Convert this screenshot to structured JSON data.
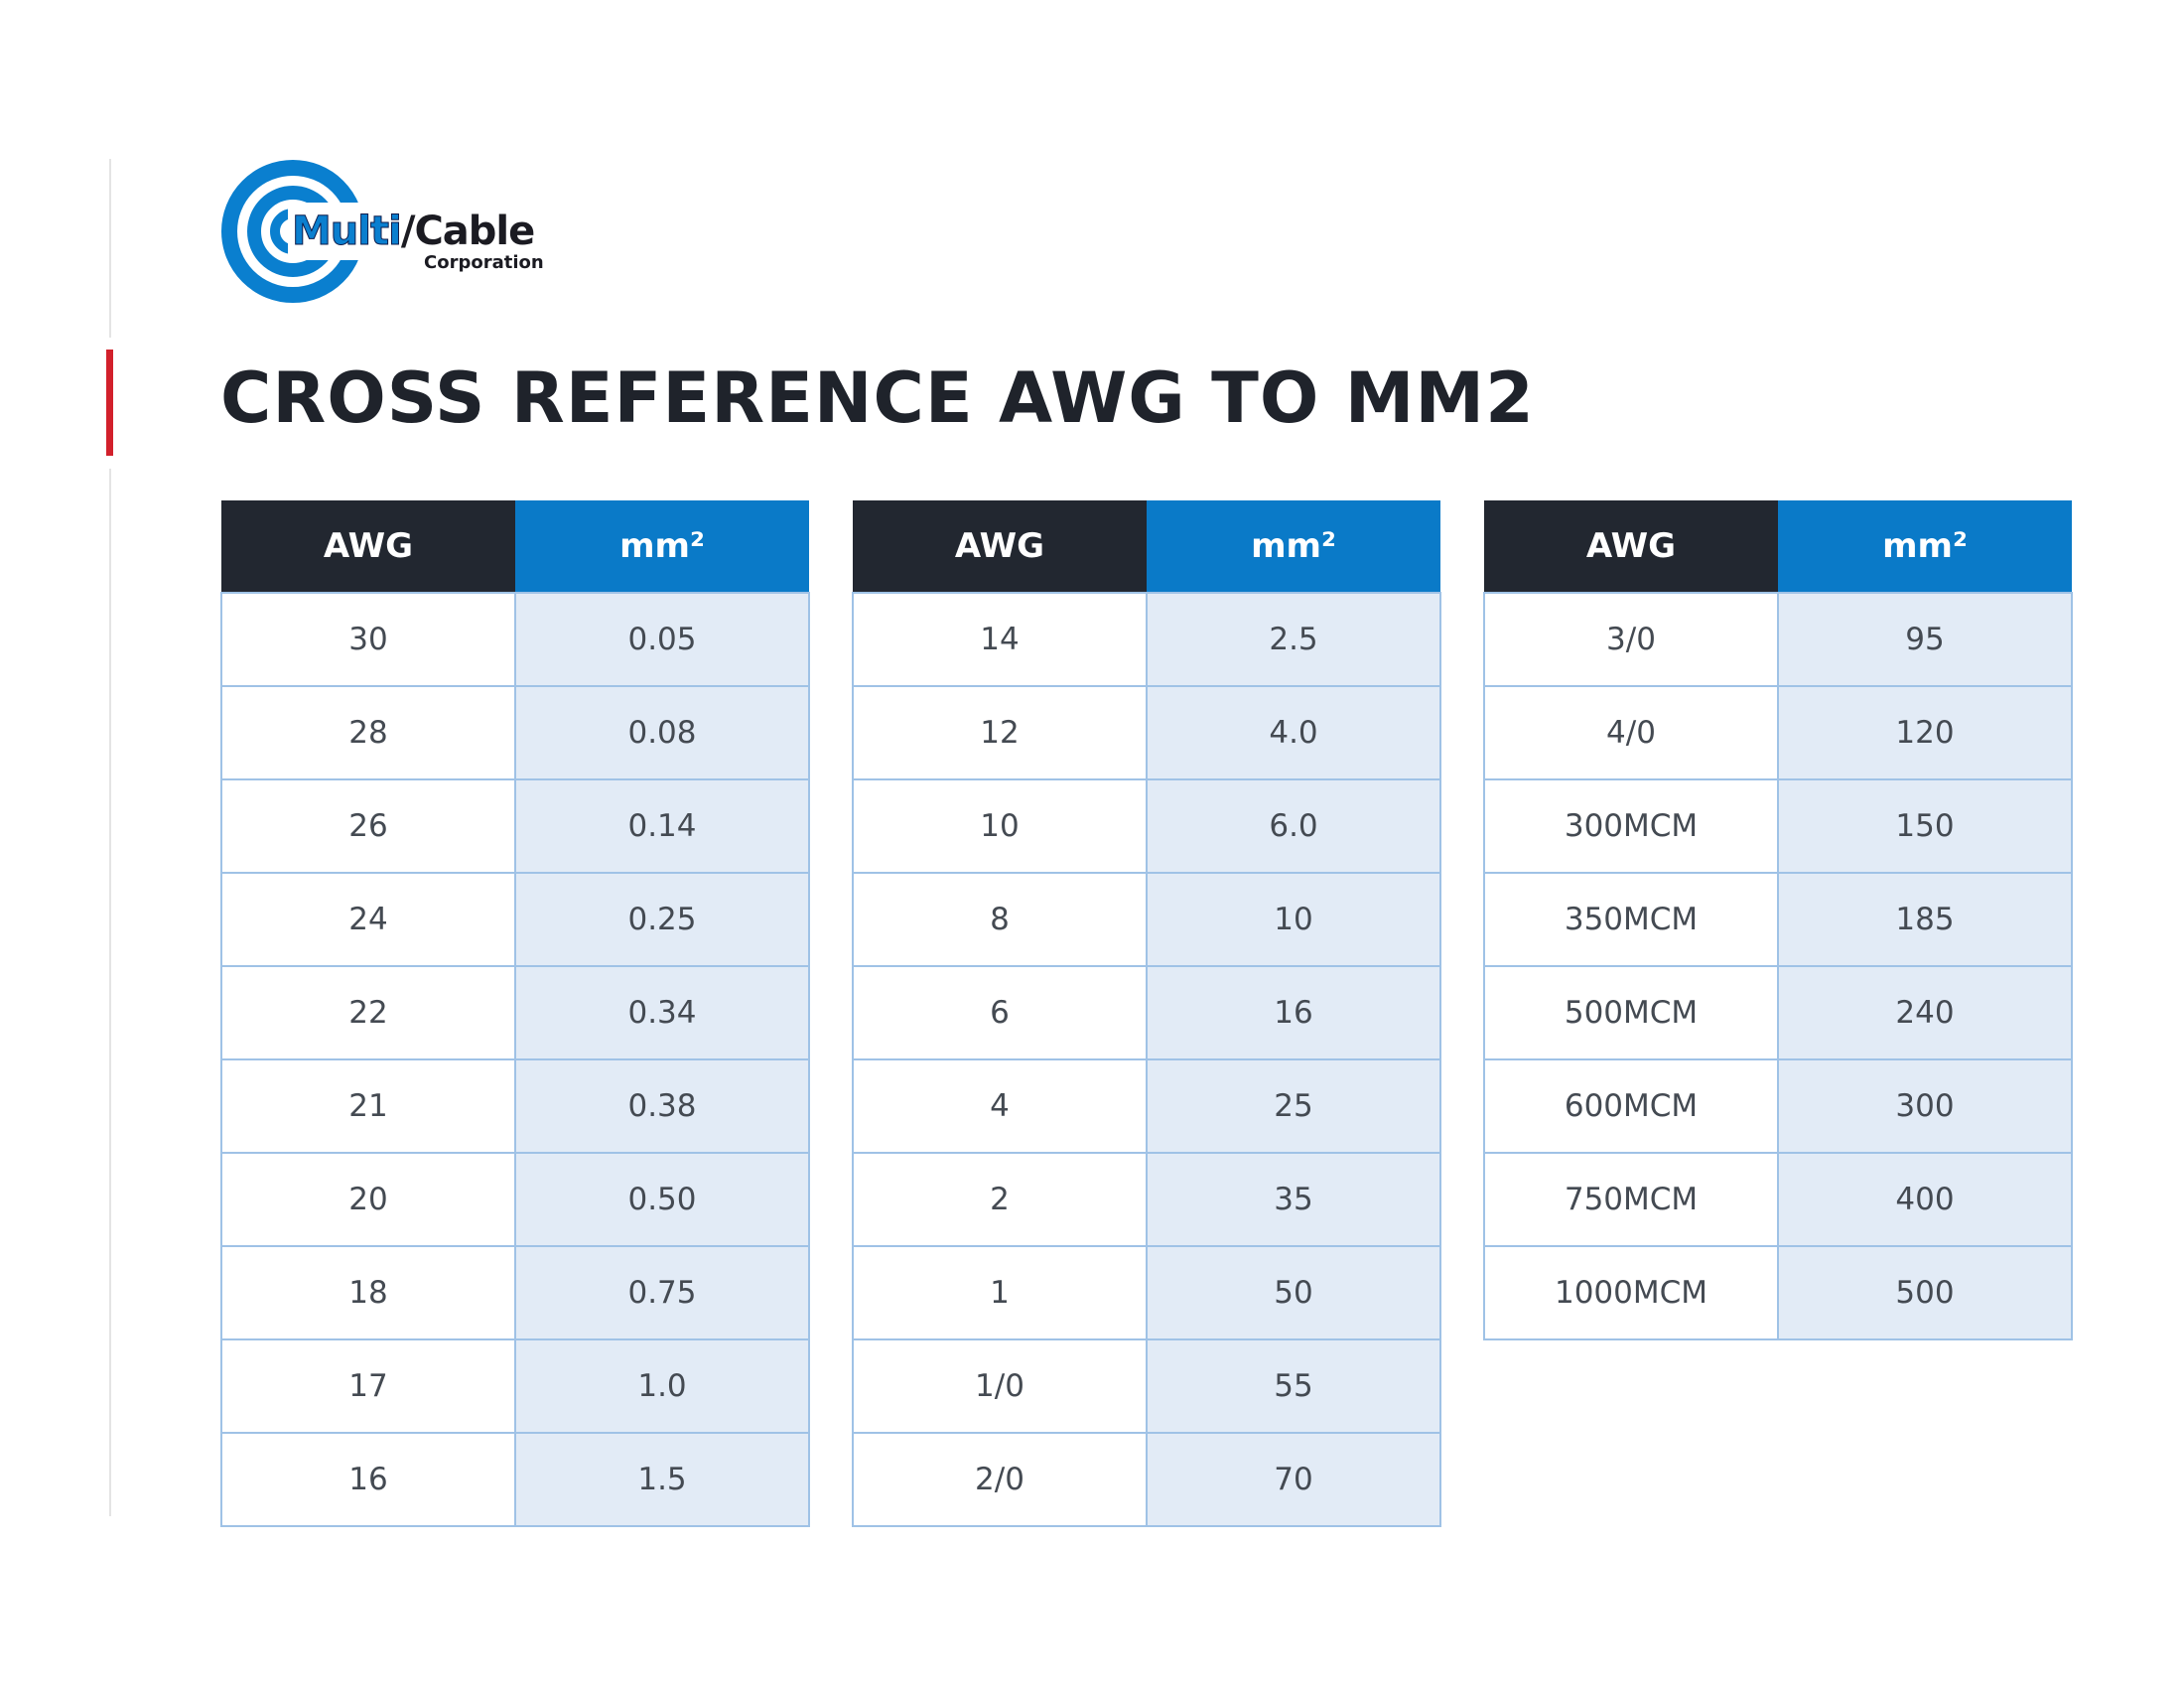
{
  "logo": {
    "word1": "Multi",
    "slash": "/",
    "word2": "Cable",
    "sub": "Corporation"
  },
  "title": "CROSS REFERENCE AWG TO MM2",
  "headers": {
    "awg": "AWG",
    "mm": "mm²"
  },
  "tables": [
    {
      "rows": [
        [
          "30",
          "0.05"
        ],
        [
          "28",
          "0.08"
        ],
        [
          "26",
          "0.14"
        ],
        [
          "24",
          "0.25"
        ],
        [
          "22",
          "0.34"
        ],
        [
          "21",
          "0.38"
        ],
        [
          "20",
          "0.50"
        ],
        [
          "18",
          "0.75"
        ],
        [
          "17",
          "1.0"
        ],
        [
          "16",
          "1.5"
        ]
      ]
    },
    {
      "rows": [
        [
          "14",
          "2.5"
        ],
        [
          "12",
          "4.0"
        ],
        [
          "10",
          "6.0"
        ],
        [
          "8",
          "10"
        ],
        [
          "6",
          "16"
        ],
        [
          "4",
          "25"
        ],
        [
          "2",
          "35"
        ],
        [
          "1",
          "50"
        ],
        [
          "1/0",
          "55"
        ],
        [
          "2/0",
          "70"
        ]
      ]
    },
    {
      "rows": [
        [
          "3/0",
          "95"
        ],
        [
          "4/0",
          "120"
        ],
        [
          "300MCM",
          "150"
        ],
        [
          "350MCM",
          "185"
        ],
        [
          "500MCM",
          "240"
        ],
        [
          "600MCM",
          "300"
        ],
        [
          "750MCM",
          "400"
        ],
        [
          "1000MCM",
          "500"
        ]
      ]
    }
  ],
  "colors": {
    "header_dark": "#222730",
    "header_blue": "#0a7ac8",
    "cell_blue": "#e2ebf6",
    "border": "#9fc2e6",
    "accent_red": "#d2202b",
    "logo_blue": "#0a7fcf"
  }
}
